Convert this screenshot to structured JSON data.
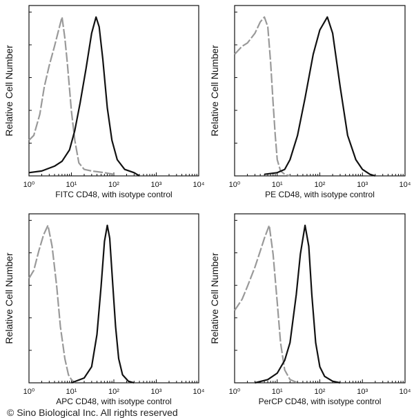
{
  "watermark": "© Sino Biological Inc. All rights reserved",
  "chart_data": [
    {
      "type": "line",
      "xlabel": "FITC  CD48,  with isotype control",
      "ylabel": "Relative Cell Number",
      "xscale": "log",
      "xlim": [
        1,
        10000
      ],
      "ylim": [
        0,
        100
      ],
      "xticks": [
        "10⁰",
        "10¹",
        "10²",
        "10³",
        "10⁴"
      ],
      "series": [
        {
          "style": "dashed",
          "color": "#999999",
          "points": [
            [
              1,
              22
            ],
            [
              1.3,
              25
            ],
            [
              1.8,
              38
            ],
            [
              2.3,
              55
            ],
            [
              3,
              68
            ],
            [
              4,
              80
            ],
            [
              5,
              90
            ],
            [
              6,
              98
            ],
            [
              7,
              85
            ],
            [
              8,
              70
            ],
            [
              10,
              40
            ],
            [
              12,
              22
            ],
            [
              15,
              8
            ],
            [
              20,
              4
            ],
            [
              30,
              3
            ],
            [
              60,
              2
            ],
            [
              100,
              1
            ]
          ]
        },
        {
          "style": "solid",
          "color": "#111111",
          "points": [
            [
              1,
              2
            ],
            [
              2,
              3
            ],
            [
              4,
              6
            ],
            [
              6,
              9
            ],
            [
              9,
              16
            ],
            [
              12,
              28
            ],
            [
              16,
              45
            ],
            [
              22,
              66
            ],
            [
              30,
              88
            ],
            [
              38,
              98
            ],
            [
              45,
              92
            ],
            [
              55,
              72
            ],
            [
              70,
              42
            ],
            [
              90,
              22
            ],
            [
              120,
              10
            ],
            [
              180,
              4
            ],
            [
              300,
              2
            ],
            [
              400,
              0
            ]
          ]
        }
      ]
    },
    {
      "type": "line",
      "xlabel": "PE  CD48,  with isotype control",
      "ylabel": "Relative Cell Number",
      "xscale": "log",
      "xlim": [
        1,
        10000
      ],
      "ylim": [
        0,
        100
      ],
      "xticks": [
        "10⁰",
        "10¹",
        "10²",
        "10³",
        "10⁴"
      ],
      "series": [
        {
          "style": "dashed",
          "color": "#999999",
          "points": [
            [
              1,
              75
            ],
            [
              1.5,
              80
            ],
            [
              2,
              82
            ],
            [
              3,
              88
            ],
            [
              4,
              95
            ],
            [
              5,
              98
            ],
            [
              6,
              92
            ],
            [
              7,
              70
            ],
            [
              8,
              45
            ],
            [
              9,
              25
            ],
            [
              10,
              10
            ],
            [
              12,
              3
            ],
            [
              15,
              1
            ],
            [
              20,
              0
            ]
          ]
        },
        {
          "style": "solid",
          "color": "#111111",
          "points": [
            [
              5,
              1
            ],
            [
              10,
              2
            ],
            [
              15,
              4
            ],
            [
              20,
              10
            ],
            [
              30,
              25
            ],
            [
              45,
              48
            ],
            [
              70,
              75
            ],
            [
              100,
              90
            ],
            [
              150,
              98
            ],
            [
              200,
              88
            ],
            [
              300,
              55
            ],
            [
              450,
              25
            ],
            [
              700,
              10
            ],
            [
              1000,
              4
            ],
            [
              1500,
              1
            ],
            [
              2000,
              0
            ]
          ]
        }
      ]
    },
    {
      "type": "line",
      "xlabel": "APC  CD48,  with isotype control",
      "ylabel": "Relative Cell Number",
      "xscale": "log",
      "xlim": [
        1,
        10000
      ],
      "ylim": [
        0,
        100
      ],
      "xticks": [
        "10⁰",
        "10¹",
        "10²",
        "10³",
        "10⁴"
      ],
      "series": [
        {
          "style": "dashed",
          "color": "#999999",
          "points": [
            [
              1,
              65
            ],
            [
              1.3,
              70
            ],
            [
              1.7,
              82
            ],
            [
              2.2,
              92
            ],
            [
              2.8,
              98
            ],
            [
              3.5,
              85
            ],
            [
              4.5,
              60
            ],
            [
              5.5,
              35
            ],
            [
              7,
              15
            ],
            [
              8.5,
              5
            ],
            [
              10,
              2
            ],
            [
              12,
              0
            ]
          ]
        },
        {
          "style": "solid",
          "color": "#111111",
          "points": [
            [
              10,
              0
            ],
            [
              20,
              3
            ],
            [
              30,
              10
            ],
            [
              40,
              30
            ],
            [
              50,
              60
            ],
            [
              60,
              88
            ],
            [
              70,
              98
            ],
            [
              80,
              90
            ],
            [
              95,
              60
            ],
            [
              110,
              35
            ],
            [
              130,
              15
            ],
            [
              160,
              5
            ],
            [
              220,
              1
            ],
            [
              300,
              0
            ]
          ]
        }
      ]
    },
    {
      "type": "line",
      "xlabel": "PerCP CD48, with isotype control",
      "ylabel": "Relative Cell Number",
      "xscale": "log",
      "xlim": [
        1,
        10000
      ],
      "ylim": [
        0,
        100
      ],
      "xticks": [
        "10⁰",
        "10¹",
        "10²",
        "10³",
        "10⁴"
      ],
      "series": [
        {
          "style": "dashed",
          "color": "#999999",
          "points": [
            [
              1,
              45
            ],
            [
              1.5,
              52
            ],
            [
              2,
              60
            ],
            [
              3,
              72
            ],
            [
              4,
              82
            ],
            [
              5,
              90
            ],
            [
              6.5,
              98
            ],
            [
              8,
              80
            ],
            [
              10,
              50
            ],
            [
              12,
              25
            ],
            [
              15,
              8
            ],
            [
              20,
              2
            ],
            [
              30,
              0
            ]
          ]
        },
        {
          "style": "solid",
          "color": "#111111",
          "points": [
            [
              3,
              0
            ],
            [
              6,
              2
            ],
            [
              10,
              6
            ],
            [
              15,
              14
            ],
            [
              20,
              25
            ],
            [
              28,
              55
            ],
            [
              35,
              80
            ],
            [
              45,
              98
            ],
            [
              55,
              85
            ],
            [
              65,
              55
            ],
            [
              80,
              25
            ],
            [
              100,
              10
            ],
            [
              130,
              4
            ],
            [
              200,
              1
            ],
            [
              300,
              0
            ]
          ]
        }
      ]
    }
  ]
}
